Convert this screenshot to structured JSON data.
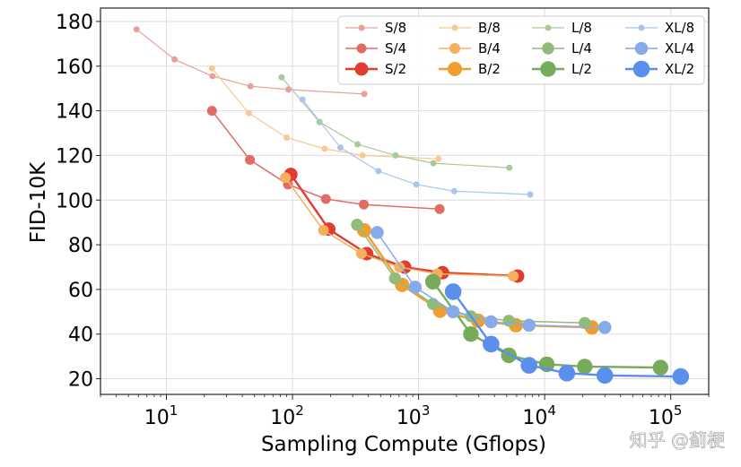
{
  "chart_data": {
    "type": "line",
    "title": "",
    "xlabel": "Sampling Compute (Gflops)",
    "ylabel": "FID-10K",
    "xscale": "log",
    "xlim": [
      3,
      200000
    ],
    "ylim": [
      13,
      186
    ],
    "grid": true,
    "legend_location": "top-right",
    "legend_columns": 4,
    "x_tick_labels": [
      {
        "value": 10,
        "base": "10",
        "exp": "1"
      },
      {
        "value": 100,
        "base": "10",
        "exp": "2"
      },
      {
        "value": 1000,
        "base": "10",
        "exp": "3"
      },
      {
        "value": 10000,
        "base": "10",
        "exp": "4"
      },
      {
        "value": 100000,
        "base": "10",
        "exp": "5"
      }
    ],
    "y_ticks": [
      20,
      40,
      60,
      80,
      100,
      120,
      140,
      160,
      180
    ],
    "series": [
      {
        "name": "S/8",
        "model": "S",
        "patch": 8,
        "color": "#e8a09a",
        "x": [
          5.8,
          11.6,
          23.2,
          46.4,
          92.8,
          371
        ],
        "y": [
          176.5,
          163,
          155.5,
          151,
          149.5,
          147.5
        ]
      },
      {
        "name": "S/4",
        "model": "S",
        "patch": 4,
        "color": "#e06c63",
        "x": [
          23,
          46,
          92,
          184,
          368,
          1470
        ],
        "y": [
          140,
          118,
          107,
          100.5,
          98,
          96
        ]
      },
      {
        "name": "S/2",
        "model": "S",
        "patch": 2,
        "color": "#e03c30",
        "x": [
          97,
          194,
          388,
          776,
          1550,
          6100
        ],
        "y": [
          111.5,
          87,
          76,
          70,
          67.5,
          66
        ]
      },
      {
        "name": "B/8",
        "model": "B",
        "patch": 8,
        "color": "#f7c992",
        "x": [
          23,
          45,
          90,
          180,
          360,
          1440
        ],
        "y": [
          159,
          139,
          128,
          123,
          120,
          118.5
        ]
      },
      {
        "name": "B/4",
        "model": "B",
        "patch": 4,
        "color": "#f3b05e",
        "x": [
          88,
          176,
          352,
          704,
          1410,
          5640
        ],
        "y": [
          110,
          86.5,
          76,
          70,
          67,
          66
        ]
      },
      {
        "name": "B/2",
        "model": "B",
        "patch": 2,
        "color": "#ef9e30",
        "x": [
          370,
          740,
          1480,
          2960,
          5920,
          23700
        ],
        "y": [
          86.5,
          62,
          50.5,
          46,
          44,
          43
        ]
      },
      {
        "name": "L/8",
        "model": "L",
        "patch": 8,
        "color": "#aac99a",
        "x": [
          82,
          164,
          328,
          656,
          1310,
          5250
        ],
        "y": [
          155,
          135,
          125,
          120,
          116.5,
          114.5
        ]
      },
      {
        "name": "L/4",
        "model": "L",
        "patch": 4,
        "color": "#90bb7a",
        "x": [
          325,
          650,
          1300,
          2600,
          5200,
          20800
        ],
        "y": [
          89,
          65,
          53.5,
          48,
          46,
          45
        ]
      },
      {
        "name": "L/2",
        "model": "L",
        "patch": 2,
        "color": "#78aa5c",
        "x": [
          1300,
          2600,
          5200,
          10400,
          20800,
          83000
        ],
        "y": [
          63.5,
          40,
          30.5,
          26.5,
          25.5,
          25
        ]
      },
      {
        "name": "XL/8",
        "model": "XL",
        "patch": 8,
        "color": "#a9c5ee",
        "x": [
          120,
          240,
          480,
          960,
          1920,
          7680
        ],
        "y": [
          145,
          123.5,
          113,
          107,
          104,
          102.5
        ]
      },
      {
        "name": "XL/4",
        "model": "XL",
        "patch": 4,
        "color": "#86aaea",
        "x": [
          470,
          940,
          1880,
          3760,
          7520,
          30000
        ],
        "y": [
          85.5,
          61,
          50,
          45.5,
          44,
          43
        ]
      },
      {
        "name": "XL/2",
        "model": "XL",
        "patch": 2,
        "color": "#5b8fec",
        "x": [
          1880,
          3760,
          7520,
          15000,
          30000,
          120000
        ],
        "y": [
          59,
          35.5,
          26,
          22.5,
          21.5,
          21
        ]
      }
    ]
  },
  "watermark": "知乎 @蓟梗"
}
